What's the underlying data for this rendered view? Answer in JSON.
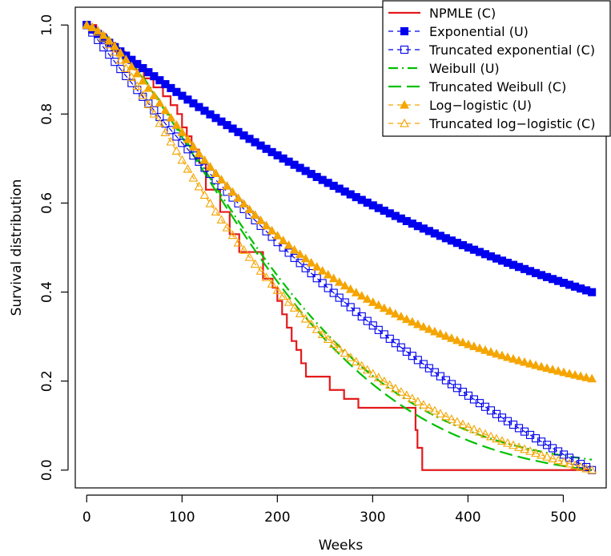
{
  "chart_data": {
    "type": "line",
    "title": "",
    "xlabel": "Weeks",
    "ylabel": "Survival distribution",
    "xlim": [
      -12,
      545
    ],
    "ylim": [
      -0.04,
      1.04
    ],
    "x_ticks": [
      0,
      100,
      200,
      300,
      400,
      500
    ],
    "y_ticks": [
      0.0,
      0.2,
      0.4,
      0.6,
      0.8,
      1.0
    ],
    "x_tick_labels": [
      "0",
      "100",
      "200",
      "300",
      "400",
      "500"
    ],
    "y_tick_labels": [
      "0.0",
      "0.2",
      "0.4",
      "0.6",
      "0.8",
      "1.0"
    ],
    "grid": false,
    "legend_position": "top-right",
    "series": [
      {
        "name": "NPMLE (C)",
        "style": "step",
        "color": "#e31a1c",
        "x": [
          0,
          10,
          20,
          30,
          40,
          50,
          60,
          70,
          80,
          88,
          95,
          100,
          105,
          110,
          118,
          125,
          130,
          140,
          150,
          155,
          160,
          175,
          185,
          190,
          195,
          200,
          205,
          210,
          215,
          220,
          225,
          230,
          240,
          255,
          270,
          285,
          300,
          320,
          345,
          347,
          352,
          355,
          530
        ],
        "y": [
          1.0,
          0.98,
          0.96,
          0.94,
          0.92,
          0.9,
          0.88,
          0.86,
          0.84,
          0.82,
          0.8,
          0.77,
          0.75,
          0.72,
          0.69,
          0.63,
          0.63,
          0.58,
          0.53,
          0.53,
          0.49,
          0.49,
          0.43,
          0.43,
          0.41,
          0.38,
          0.35,
          0.32,
          0.29,
          0.27,
          0.24,
          0.21,
          0.21,
          0.18,
          0.16,
          0.14,
          0.14,
          0.14,
          0.09,
          0.05,
          0.0,
          0.0,
          0.0
        ]
      },
      {
        "name": "Exponential (U)",
        "style": "dashed-marker",
        "color": "#0000ee",
        "marker": "filled-square",
        "model": "exponential",
        "params": {
          "lambda": 0.00173,
          "x_from": 0,
          "x_to": 530,
          "points": 90
        }
      },
      {
        "name": "Truncated exponential (C)",
        "style": "dashed-marker",
        "color": "#0000ee",
        "marker": "open-square",
        "model": "truncated-exponential",
        "params": {
          "lambda": 0.00173,
          "tmax": 530,
          "x_from": 0,
          "x_to": 530,
          "points": 90
        }
      },
      {
        "name": "Weibull (U)",
        "style": "dashdot",
        "color": "#00c000",
        "model": "weibull",
        "params": {
          "scale": 226,
          "shape": 1.55,
          "x_from": 0,
          "x_to": 530
        }
      },
      {
        "name": "Truncated Weibull (C)",
        "style": "longdash",
        "color": "#00c000",
        "model": "truncated-weibull",
        "params": {
          "scale": 226,
          "shape": 1.55,
          "tmax": 530,
          "x_from": 0,
          "x_to": 530
        }
      },
      {
        "name": "Log−logistic (U)",
        "style": "dashed-marker",
        "color": "#f5a500",
        "marker": "filled-triangle",
        "model": "log-logistic",
        "params": {
          "alpha": 215,
          "beta": 1.5,
          "x_from": 0,
          "x_to": 530,
          "points": 90
        }
      },
      {
        "name": "Truncated log−logistic (C)",
        "style": "dashed-marker",
        "color": "#f5a500",
        "marker": "open-triangle",
        "model": "truncated-log-logistic",
        "params": {
          "alpha": 215,
          "beta": 1.5,
          "tmax": 530,
          "x_from": 0,
          "x_to": 530,
          "points": 90
        }
      }
    ]
  }
}
